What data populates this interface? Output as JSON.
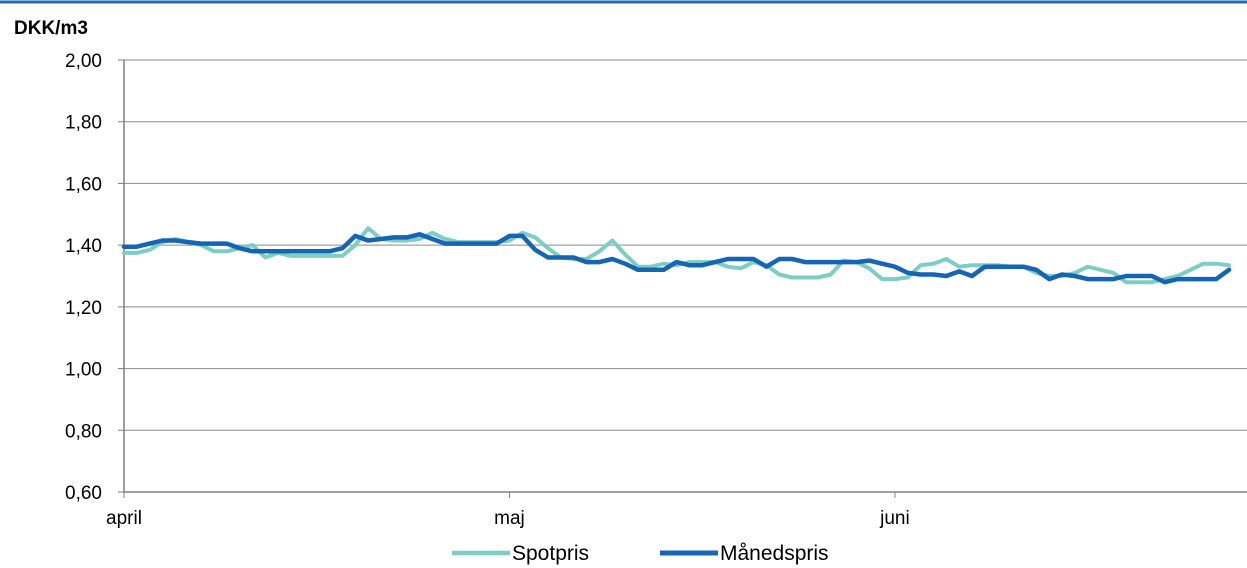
{
  "chart_data": {
    "type": "line",
    "unit_label": "DKK/m3",
    "ylim": [
      0.6,
      2.0
    ],
    "y_ticks": [
      "0,60",
      "0,80",
      "1,00",
      "1,20",
      "1,40",
      "1,60",
      "1,80",
      "2,00"
    ],
    "y_tick_values": [
      0.6,
      0.8,
      1.0,
      1.2,
      1.4,
      1.6,
      1.8,
      2.0
    ],
    "x_ticks": [
      "april",
      "maj",
      "juni"
    ],
    "x_tick_days": [
      0,
      30,
      60
    ],
    "x_range": [
      0,
      86
    ],
    "grid": true,
    "legend_position": "bottom",
    "colors": {
      "top_border": "#1b6fb5",
      "grid": "#8c8c8c",
      "axis": "#808080"
    },
    "series": [
      {
        "name": "Spotpris",
        "color": "#7ccdc4",
        "x": [
          0,
          1,
          2,
          3,
          4,
          5,
          6,
          7,
          8,
          9,
          10,
          11,
          12,
          13,
          14,
          15,
          16,
          17,
          18,
          19,
          20,
          21,
          22,
          23,
          24,
          25,
          26,
          27,
          28,
          29,
          30,
          31,
          32,
          33,
          34,
          35,
          36,
          37,
          38,
          39,
          40,
          41,
          42,
          43,
          44,
          45,
          46,
          47,
          48,
          49,
          50,
          51,
          52,
          53,
          54,
          55,
          56,
          57,
          58,
          59,
          60,
          61,
          62,
          63,
          64,
          65,
          66,
          67,
          68,
          69,
          70,
          71,
          72,
          73,
          74,
          75,
          76,
          77,
          78,
          79,
          80,
          81,
          82,
          83,
          84,
          85,
          86
        ],
        "values": [
          1.375,
          1.375,
          1.385,
          1.41,
          1.42,
          1.41,
          1.4,
          1.38,
          1.38,
          1.39,
          1.4,
          1.36,
          1.375,
          1.365,
          1.365,
          1.365,
          1.365,
          1.365,
          1.4,
          1.455,
          1.42,
          1.415,
          1.415,
          1.42,
          1.44,
          1.42,
          1.41,
          1.41,
          1.41,
          1.41,
          1.415,
          1.44,
          1.425,
          1.39,
          1.36,
          1.355,
          1.355,
          1.38,
          1.415,
          1.37,
          1.33,
          1.33,
          1.34,
          1.335,
          1.345,
          1.345,
          1.345,
          1.33,
          1.325,
          1.345,
          1.335,
          1.305,
          1.295,
          1.295,
          1.295,
          1.305,
          1.35,
          1.345,
          1.325,
          1.29,
          1.29,
          1.295,
          1.335,
          1.34,
          1.355,
          1.33,
          1.335,
          1.335,
          1.335,
          1.33,
          1.33,
          1.31,
          1.3,
          1.3,
          1.31,
          1.33,
          1.32,
          1.31,
          1.28,
          1.28,
          1.28,
          1.29,
          1.3,
          1.32,
          1.34,
          1.34,
          1.335
        ]
      },
      {
        "name": "Månedspris",
        "color": "#1565b5",
        "x": [
          0,
          1,
          2,
          3,
          4,
          5,
          6,
          7,
          8,
          9,
          10,
          11,
          12,
          13,
          14,
          15,
          16,
          17,
          18,
          19,
          20,
          21,
          22,
          23,
          24,
          25,
          26,
          27,
          28,
          29,
          30,
          31,
          32,
          33,
          34,
          35,
          36,
          37,
          38,
          39,
          40,
          41,
          42,
          43,
          44,
          45,
          46,
          47,
          48,
          49,
          50,
          51,
          52,
          53,
          54,
          55,
          56,
          57,
          58,
          59,
          60,
          61,
          62,
          63,
          64,
          65,
          66,
          67,
          68,
          69,
          70,
          71,
          72,
          73,
          74,
          75,
          76,
          77,
          78,
          79,
          80,
          81,
          82,
          83,
          84,
          85,
          86
        ],
        "values": [
          1.395,
          1.395,
          1.405,
          1.415,
          1.415,
          1.41,
          1.405,
          1.405,
          1.405,
          1.39,
          1.38,
          1.38,
          1.38,
          1.38,
          1.38,
          1.38,
          1.38,
          1.39,
          1.43,
          1.415,
          1.42,
          1.425,
          1.425,
          1.435,
          1.42,
          1.405,
          1.405,
          1.405,
          1.405,
          1.405,
          1.43,
          1.43,
          1.385,
          1.36,
          1.36,
          1.36,
          1.345,
          1.345,
          1.355,
          1.34,
          1.32,
          1.32,
          1.32,
          1.345,
          1.335,
          1.335,
          1.345,
          1.355,
          1.355,
          1.355,
          1.33,
          1.355,
          1.355,
          1.345,
          1.345,
          1.345,
          1.345,
          1.345,
          1.35,
          1.34,
          1.33,
          1.31,
          1.305,
          1.305,
          1.3,
          1.315,
          1.3,
          1.33,
          1.33,
          1.33,
          1.33,
          1.32,
          1.29,
          1.305,
          1.3,
          1.29,
          1.29,
          1.29,
          1.3,
          1.3,
          1.3,
          1.28,
          1.29,
          1.29,
          1.29,
          1.29,
          1.32
        ]
      }
    ]
  }
}
